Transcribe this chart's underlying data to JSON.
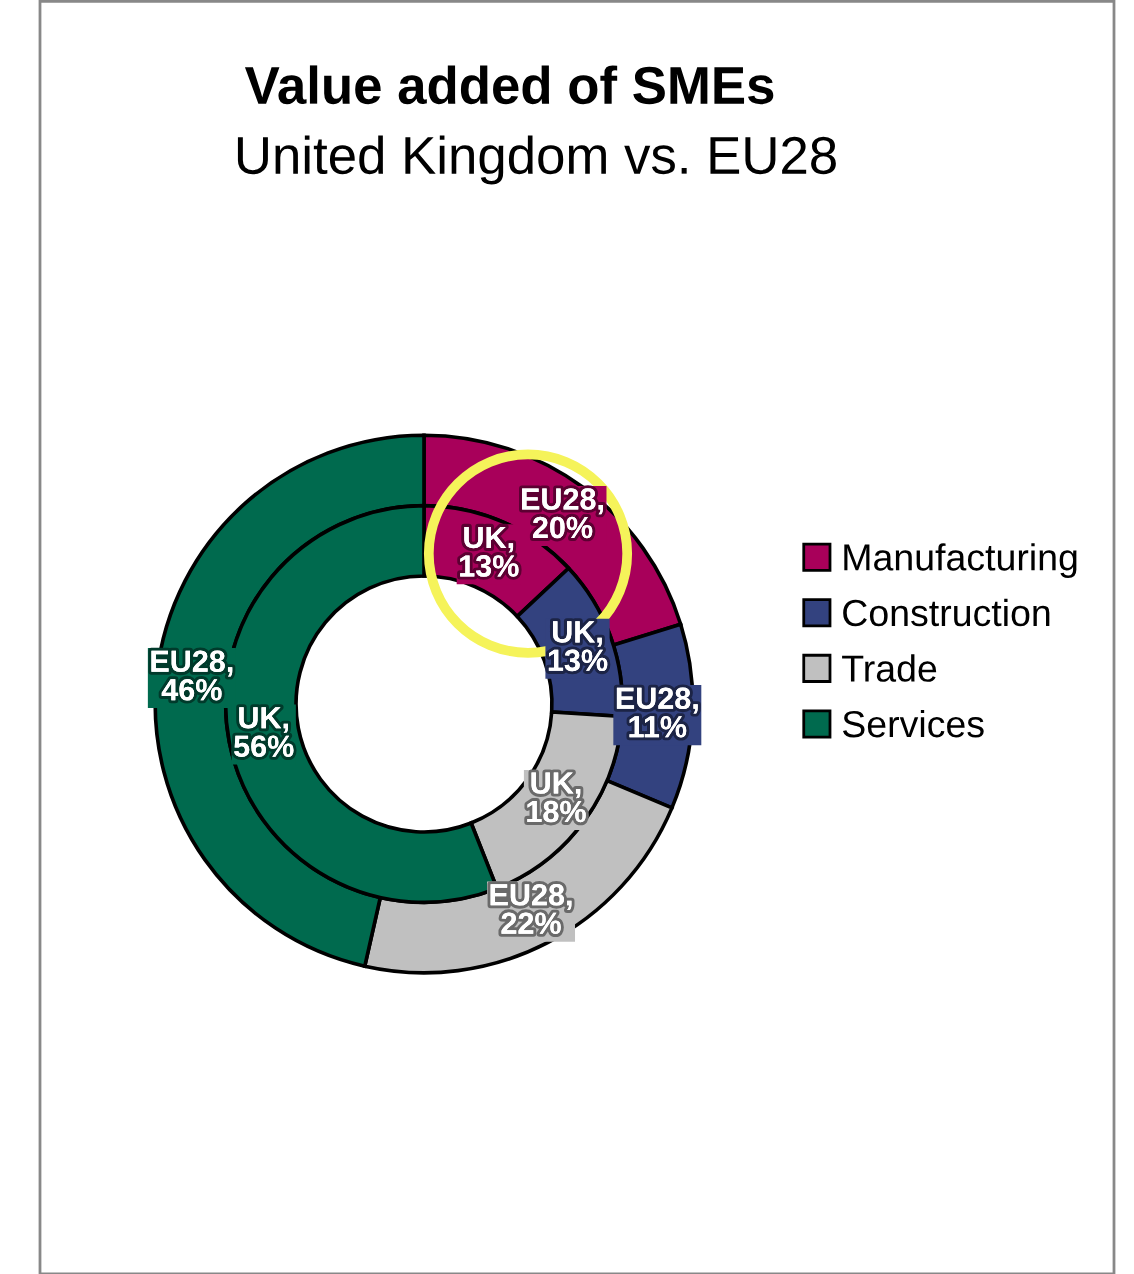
{
  "chart_data": {
    "type": "donut",
    "title": "Value added of SMEs",
    "subtitle": "United Kingdom vs. EU28",
    "categories": [
      "Manufacturing",
      "Construction",
      "Trade",
      "Services"
    ],
    "colors": [
      "#a8005a",
      "#33427f",
      "#c0c0c0",
      "#006a4e"
    ],
    "series": [
      {
        "values": [
          20,
          11,
          22,
          46
        ],
        "value_labels": [
          "EU28, 20%",
          "EU28, 11%",
          "EU28, 22%",
          "EU28, 46%"
        ]
      },
      {
        "values": [
          13,
          13,
          18,
          56
        ],
        "value_labels": [
          "UK, 13%",
          "UK, 13%",
          "UK, 18%",
          "UK, 56%"
        ]
      }
    ],
    "legend": "right"
  }
}
